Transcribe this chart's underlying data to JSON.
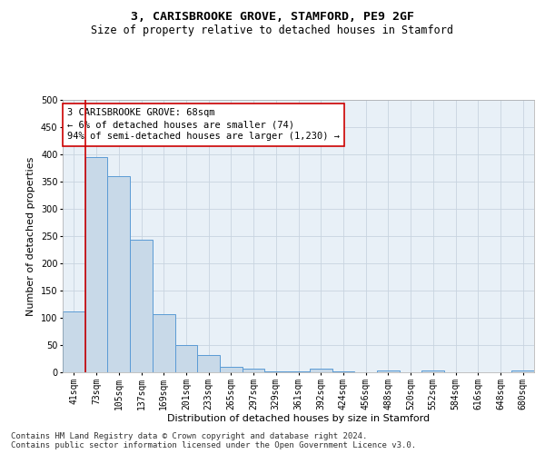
{
  "title": "3, CARISBROOKE GROVE, STAMFORD, PE9 2GF",
  "subtitle": "Size of property relative to detached houses in Stamford",
  "xlabel": "Distribution of detached houses by size in Stamford",
  "ylabel": "Number of detached properties",
  "bar_labels": [
    "41sqm",
    "73sqm",
    "105sqm",
    "137sqm",
    "169sqm",
    "201sqm",
    "233sqm",
    "265sqm",
    "297sqm",
    "329sqm",
    "361sqm",
    "392sqm",
    "424sqm",
    "456sqm",
    "488sqm",
    "520sqm",
    "552sqm",
    "584sqm",
    "616sqm",
    "648sqm",
    "680sqm"
  ],
  "bar_values": [
    112,
    395,
    360,
    244,
    106,
    50,
    31,
    10,
    6,
    2,
    1,
    6,
    1,
    0,
    3,
    0,
    4,
    0,
    0,
    0,
    3
  ],
  "bar_color": "#c8d9e8",
  "bar_edge_color": "#5b9bd5",
  "highlight_color": "#cc0000",
  "annotation_text": "3 CARISBROOKE GROVE: 68sqm\n← 6% of detached houses are smaller (74)\n94% of semi-detached houses are larger (1,230) →",
  "annotation_box_color": "#ffffff",
  "annotation_box_edge": "#cc0000",
  "ylim": [
    0,
    500
  ],
  "yticks": [
    0,
    50,
    100,
    150,
    200,
    250,
    300,
    350,
    400,
    450,
    500
  ],
  "footer_line1": "Contains HM Land Registry data © Crown copyright and database right 2024.",
  "footer_line2": "Contains public sector information licensed under the Open Government Licence v3.0.",
  "background_color": "#ffffff",
  "plot_bg_color": "#e8f0f7",
  "grid_color": "#c8d4e0",
  "title_fontsize": 9.5,
  "subtitle_fontsize": 8.5,
  "axis_label_fontsize": 8,
  "tick_fontsize": 7,
  "annotation_fontsize": 7.5,
  "footer_fontsize": 6.5
}
